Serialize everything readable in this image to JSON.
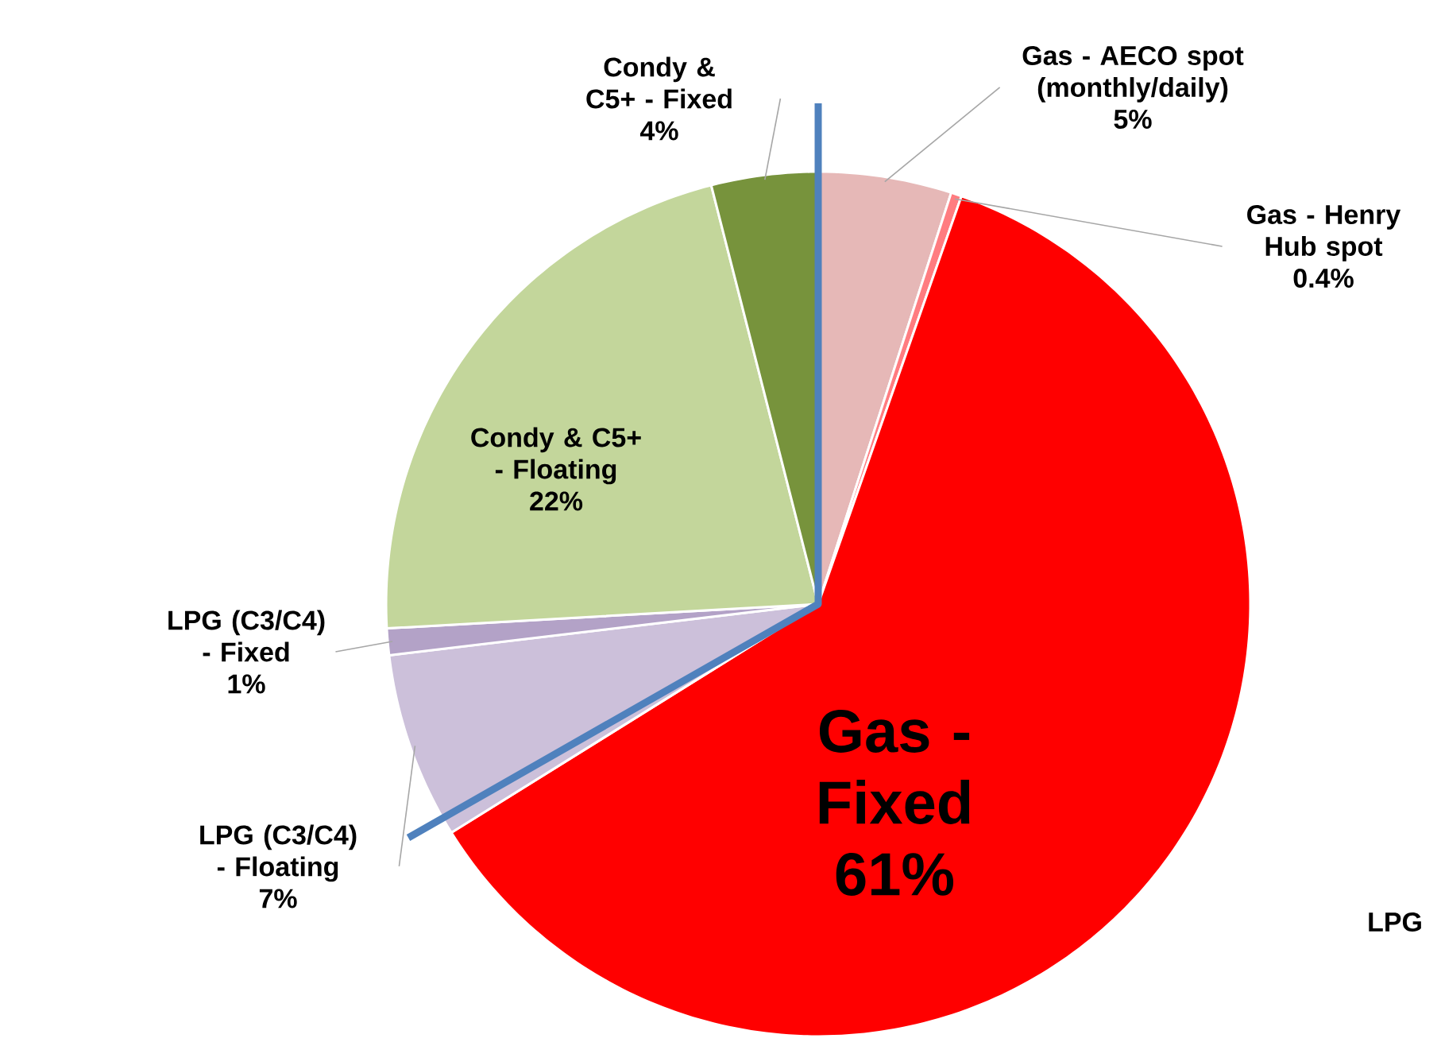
{
  "chart_data": {
    "type": "pie",
    "categories": [
      "Gas - AECO spot (monthly/daily)",
      "Gas - Henry Hub spot",
      "Gas - Fixed",
      "LPG (C3/C4) - Floating",
      "LPG (C3/C4) - Fixed",
      "Condy & C5+ - Floating",
      "Condy & C5+ - Fixed"
    ],
    "values": [
      5,
      0.4,
      61,
      7,
      1,
      22,
      4
    ],
    "value_labels": [
      "5%",
      "0.4%",
      "61%",
      "7%",
      "1%",
      "22%",
      "4%"
    ],
    "colors": [
      "#e6b8b7",
      "#ff7c80",
      "#ff0000",
      "#ccc0da",
      "#b3a2c7",
      "#c3d69b",
      "#77933c"
    ],
    "annotations": [
      "LPG"
    ]
  }
}
